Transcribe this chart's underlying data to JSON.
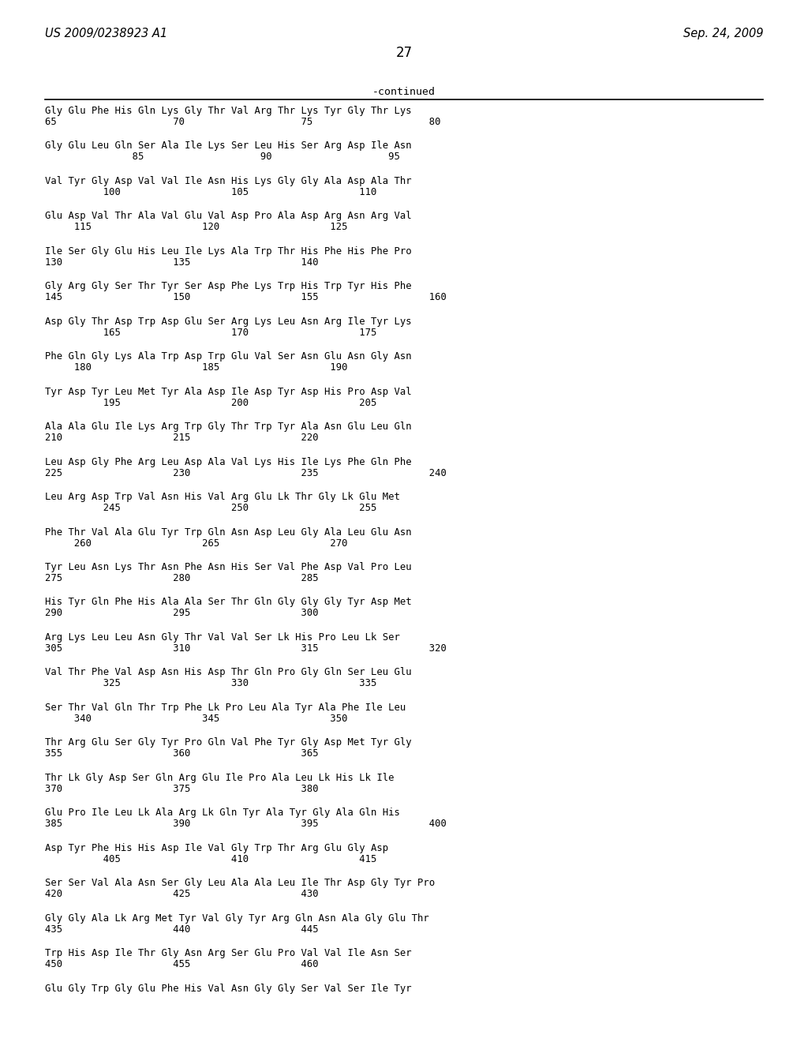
{
  "header_left": "US 2009/0238923 A1",
  "header_right": "Sep. 24, 2009",
  "page_number": "27",
  "continued_label": "-continued",
  "background_color": "#ffffff",
  "text_color": "#000000",
  "sequence_blocks": [
    {
      "seq": "Gly Glu Phe His Gln Lys Gly Thr Val Arg Thr Lys Tyr Gly Thr Lys",
      "num": "65                    70                    75                    80"
    },
    {
      "seq": "Gly Glu Leu Gln Ser Ala Ile Lys Ser Leu His Ser Arg Asp Ile Asn",
      "num": "               85                    90                    95"
    },
    {
      "seq": "Val Tyr Gly Asp Val Val Ile Asn His Lys Gly Gly Ala Asp Ala Thr",
      "num": "          100                   105                   110"
    },
    {
      "seq": "Glu Asp Val Thr Ala Val Glu Val Asp Pro Ala Asp Arg Asn Arg Val",
      "num": "     115                   120                   125"
    },
    {
      "seq": "Ile Ser Gly Glu His Leu Ile Lys Ala Trp Thr His Phe His Phe Pro",
      "num": "130                   135                   140"
    },
    {
      "seq": "Gly Arg Gly Ser Thr Tyr Ser Asp Phe Lys Trp His Trp Tyr His Phe",
      "num": "145                   150                   155                   160"
    },
    {
      "seq": "Asp Gly Thr Asp Trp Asp Glu Ser Arg Lys Leu Asn Arg Ile Tyr Lys",
      "num": "          165                   170                   175"
    },
    {
      "seq": "Phe Gln Gly Lys Ala Trp Asp Trp Glu Val Ser Asn Glu Asn Gly Asn",
      "num": "     180                   185                   190"
    },
    {
      "seq": "Tyr Asp Tyr Leu Met Tyr Ala Asp Ile Asp Tyr Asp His Pro Asp Val",
      "num": "          195                   200                   205"
    },
    {
      "seq": "Ala Ala Glu Ile Lys Arg Trp Gly Thr Trp Tyr Ala Asn Glu Leu Gln",
      "num": "210                   215                   220"
    },
    {
      "seq": "Leu Asp Gly Phe Arg Leu Asp Ala Val Lys His Ile Lys Phe Gln Phe",
      "num": "225                   230                   235                   240"
    },
    {
      "seq": "Leu Arg Asp Trp Val Asn His Val Arg Glu Lk Thr Gly Lk Glu Met",
      "num": "          245                   250                   255"
    },
    {
      "seq": "Phe Thr Val Ala Glu Tyr Trp Gln Asn Asp Leu Gly Ala Leu Glu Asn",
      "num": "     260                   265                   270"
    },
    {
      "seq": "Tyr Leu Asn Lys Thr Asn Phe Asn His Ser Val Phe Asp Val Pro Leu",
      "num": "275                   280                   285"
    },
    {
      "seq": "His Tyr Gln Phe His Ala Ala Ser Thr Gln Gly Gly Gly Tyr Asp Met",
      "num": "290                   295                   300"
    },
    {
      "seq": "Arg Lys Leu Leu Asn Gly Thr Val Val Ser Lk His Pro Leu Lk Ser",
      "num": "305                   310                   315                   320"
    },
    {
      "seq": "Val Thr Phe Val Asp Asn His Asp Thr Gln Pro Gly Gln Ser Leu Glu",
      "num": "          325                   330                   335"
    },
    {
      "seq": "Ser Thr Val Gln Thr Trp Phe Lk Pro Leu Ala Tyr Ala Phe Ile Leu",
      "num": "     340                   345                   350"
    },
    {
      "seq": "Thr Arg Glu Ser Gly Tyr Pro Gln Val Phe Tyr Gly Asp Met Tyr Gly",
      "num": "355                   360                   365"
    },
    {
      "seq": "Thr Lk Gly Asp Ser Gln Arg Glu Ile Pro Ala Leu Lk His Lk Ile",
      "num": "370                   375                   380"
    },
    {
      "seq": "Glu Pro Ile Leu Lk Ala Arg Lk Gln Tyr Ala Tyr Gly Ala Gln His",
      "num": "385                   390                   395                   400"
    },
    {
      "seq": "Asp Tyr Phe His His Asp Ile Val Gly Trp Thr Arg Glu Gly Asp",
      "num": "          405                   410                   415"
    },
    {
      "seq": "Ser Ser Val Ala Asn Ser Gly Leu Ala Ala Leu Ile Thr Asp Gly Tyr Pro",
      "num": "420                   425                   430"
    },
    {
      "seq": "Gly Gly Ala Lk Arg Met Tyr Val Gly Tyr Arg Gln Asn Ala Gly Glu Thr",
      "num": "435                   440                   445"
    },
    {
      "seq": "Trp His Asp Ile Thr Gly Asn Arg Ser Glu Pro Val Val Ile Asn Ser",
      "num": "450                   455                   460"
    },
    {
      "seq": "Glu Gly Trp Gly Glu Phe His Val Asn Gly Gly Ser Val Ser Ile Tyr",
      "num": ""
    }
  ]
}
